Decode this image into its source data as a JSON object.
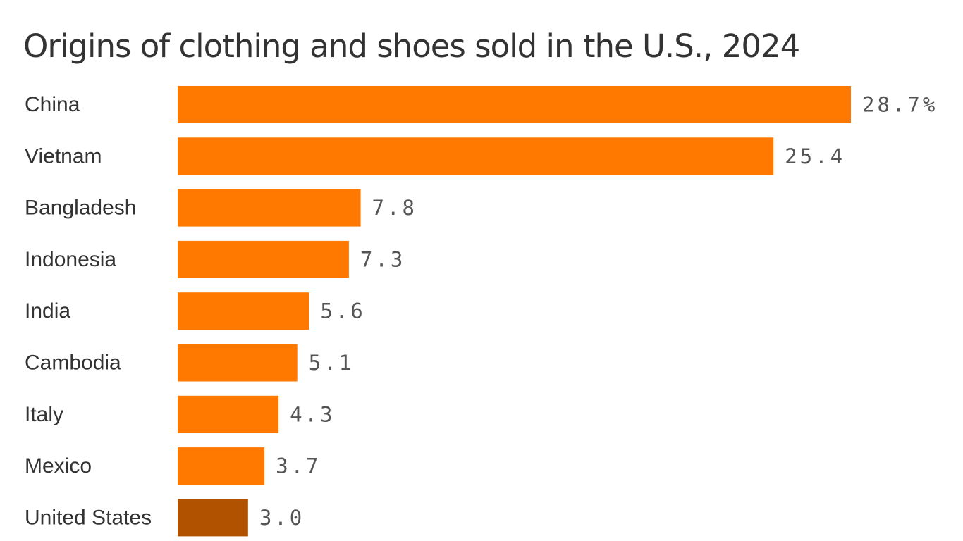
{
  "colors": {
    "bar": "#ff7900",
    "highlight": "#b15200"
  },
  "chart_data": {
    "type": "bar",
    "orientation": "horizontal",
    "title": "Origins of clothing and shoes sold in the U.S., 2024",
    "xlabel": "",
    "ylabel": "",
    "unit_suffix_first": "%",
    "categories": [
      "China",
      "Vietnam",
      "Bangladesh",
      "Indonesia",
      "India",
      "Cambodia",
      "Italy",
      "Mexico",
      "United States"
    ],
    "values": [
      28.7,
      25.4,
      7.8,
      7.3,
      5.6,
      5.1,
      4.3,
      3.7,
      3.0
    ],
    "value_labels": [
      "28.7%",
      "25.4",
      "7.8",
      "7.3",
      "5.6",
      "5.1",
      "4.3",
      "3.7",
      "3.0"
    ],
    "highlight_category": "United States",
    "xlim": [
      0,
      28.7
    ],
    "grid": false,
    "legend": "none"
  }
}
